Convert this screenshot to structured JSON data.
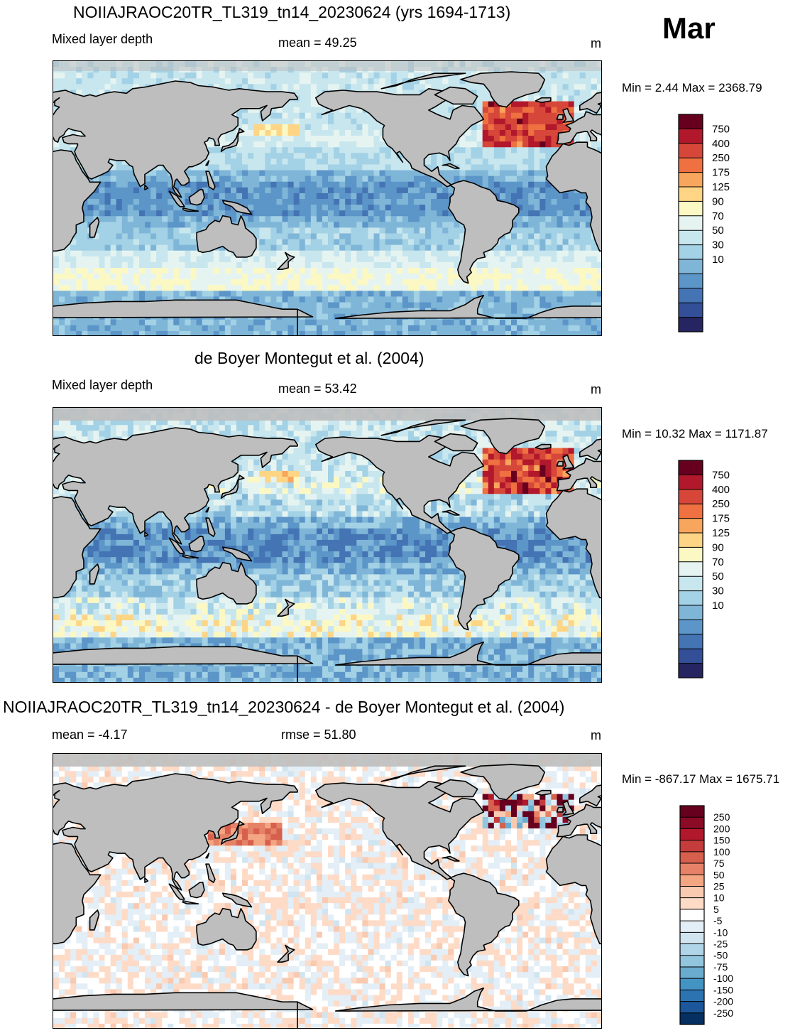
{
  "month": "Mar",
  "panels": [
    {
      "title": "NOIIAJRAOC20TR_TL319_tn14_20230624 (yrs 1694-1713)",
      "left_label": "Mixed layer depth",
      "center_label": "mean =  49.25",
      "units": "m",
      "minmax": "Min =    2.44 Max = 2368.79",
      "field": "model"
    },
    {
      "title": "de Boyer Montegut et al. (2004)",
      "left_label": "Mixed layer depth",
      "center_label": "mean =  53.42",
      "units": "m",
      "minmax": "Min =  10.32 Max = 1171.87",
      "field": "obs"
    },
    {
      "title": "NOIIAJRAOC20TR_TL319_tn14_20230624 - de Boyer Montegut et al. (2004)",
      "left_label": "mean =  -4.17",
      "center_label": "rmse =  51.80",
      "units": "m",
      "minmax": "Min = -867.17 Max = 1675.71",
      "field": "diff"
    }
  ],
  "colorbar_mld": {
    "labels": [
      "750",
      "400",
      "250",
      "175",
      "125",
      "90",
      "70",
      "50",
      "30",
      "10"
    ],
    "colors": [
      "#67001f",
      "#b2182b",
      "#d6473a",
      "#ef7040",
      "#f8a55d",
      "#fdd585",
      "#fbf8c4",
      "#e6f4f1",
      "#c8e6ee",
      "#a3d1e5",
      "#7fb6d8",
      "#5c95c8",
      "#4474b3",
      "#334f98",
      "#262561"
    ]
  },
  "colorbar_diff": {
    "labels": [
      "250",
      "200",
      "150",
      "100",
      "75",
      "50",
      "25",
      "10",
      "5",
      "-5",
      "-10",
      "-25",
      "-50",
      "-75",
      "-100",
      "-150",
      "-200",
      "-250"
    ],
    "colors": [
      "#67001f",
      "#8b0a26",
      "#b2182b",
      "#c43c3c",
      "#d6604d",
      "#e58267",
      "#f4a582",
      "#f9c9b0",
      "#fddbc7",
      "#ffffff",
      "#e3eef6",
      "#d1e5f0",
      "#b0d4e8",
      "#92c5de",
      "#6aacd0",
      "#4393c3",
      "#2c74b1",
      "#1b579a",
      "#053061"
    ]
  },
  "map_colors": {
    "land": "#bebebe",
    "coast": "#000000"
  }
}
